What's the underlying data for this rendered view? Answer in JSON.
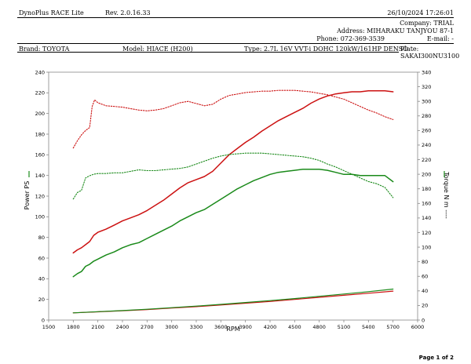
{
  "header": {
    "app_name": "DynoPlus RACE Lite",
    "revision": "Rev. 2.0.16.33",
    "datetime": "26/10/2024  17:26:01",
    "company": "Company: TRIAL",
    "address": "Address: MIHARAKU TANJYOU 87-1",
    "phone": "Phone: 072-369-3539",
    "email": "E-mail: -"
  },
  "vehicle": {
    "brand": "Brand: TOYOTA",
    "model": "Model: HIACE (H200)",
    "type": "Type: 2.7L 16V VVT-i DOHC 120kW/161HP DENSO",
    "plate_label": "Plate:",
    "plate_value": "SAKAI300NU3100"
  },
  "footer": {
    "page": "Page 1 of 2"
  },
  "chart_data": {
    "type": "line",
    "xlabel": "RPM",
    "ylabel": "Power PS",
    "y2label": "Torque N m ----",
    "xlim": [
      1500,
      6000
    ],
    "ylim": [
      0,
      240
    ],
    "y2lim": [
      0,
      340
    ],
    "x_ticks": [
      "1500",
      "1800",
      "2100",
      "2400",
      "2700",
      "3000",
      "3300",
      "3600",
      "3900",
      "4200",
      "4500",
      "4800",
      "5100",
      "5400",
      "5700",
      "6000"
    ],
    "y_ticks": [
      "0",
      "20",
      "40",
      "60",
      "80",
      "100",
      "120",
      "140",
      "160",
      "180",
      "200",
      "220",
      "240"
    ],
    "y2_ticks": [
      "0",
      "20",
      "40",
      "60",
      "80",
      "100",
      "120",
      "140",
      "160",
      "180",
      "200",
      "220",
      "240",
      "260",
      "280",
      "300",
      "320",
      "340"
    ],
    "grid": true,
    "colors": {
      "red": "#cc1111",
      "green": "#1a8a1a",
      "grid": "#d9d9d9",
      "axis": "#888888"
    },
    "series": [
      {
        "color": "red",
        "axis": "left",
        "style": "solid",
        "x": [
          1800,
          1850,
          1900,
          1950,
          2000,
          2050,
          2100,
          2200,
          2300,
          2400,
          2500,
          2600,
          2700,
          2800,
          2900,
          3000,
          3100,
          3200,
          3300,
          3400,
          3500,
          3600,
          3700,
          3800,
          3900,
          4000,
          4100,
          4200,
          4300,
          4400,
          4500,
          4600,
          4700,
          4800,
          4900,
          5000,
          5100,
          5200,
          5300,
          5400,
          5500,
          5600,
          5700
        ],
        "y": [
          65,
          68,
          70,
          73,
          76,
          82,
          85,
          88,
          92,
          96,
          99,
          102,
          106,
          111,
          116,
          122,
          128,
          133,
          136,
          139,
          144,
          152,
          160,
          166,
          172,
          177,
          183,
          188,
          193,
          197,
          201,
          205,
          210,
          214,
          217,
          219,
          220,
          221,
          221,
          222,
          222,
          222,
          221
        ]
      },
      {
        "color": "green",
        "axis": "left",
        "style": "solid",
        "x": [
          1800,
          1850,
          1900,
          1950,
          2000,
          2050,
          2100,
          2200,
          2300,
          2400,
          2500,
          2600,
          2700,
          2800,
          2900,
          3000,
          3100,
          3200,
          3300,
          3400,
          3500,
          3600,
          3700,
          3800,
          3900,
          4000,
          4100,
          4200,
          4300,
          4400,
          4500,
          4600,
          4700,
          4800,
          4900,
          5000,
          5100,
          5200,
          5300,
          5400,
          5500,
          5600,
          5700
        ],
        "y": [
          42,
          45,
          47,
          52,
          54,
          57,
          59,
          63,
          66,
          70,
          73,
          75,
          79,
          83,
          87,
          91,
          96,
          100,
          104,
          107,
          112,
          117,
          122,
          127,
          131,
          135,
          138,
          141,
          143,
          144,
          145,
          146,
          146,
          146,
          145,
          143,
          141,
          141,
          140,
          140,
          140,
          140,
          134
        ]
      },
      {
        "color": "red",
        "axis": "right",
        "style": "dotted",
        "x": [
          1800,
          1850,
          1900,
          1950,
          2000,
          2030,
          2060,
          2100,
          2200,
          2300,
          2400,
          2500,
          2600,
          2700,
          2800,
          2900,
          3000,
          3100,
          3200,
          3300,
          3400,
          3500,
          3600,
          3700,
          3800,
          3900,
          4000,
          4100,
          4200,
          4300,
          4400,
          4500,
          4600,
          4700,
          4800,
          4900,
          5000,
          5100,
          5200,
          5300,
          5400,
          5500,
          5600,
          5700
        ],
        "y": [
          236,
          246,
          254,
          260,
          264,
          293,
          302,
          298,
          294,
          293,
          292,
          290,
          288,
          287,
          288,
          290,
          294,
          298,
          300,
          297,
          294,
          296,
          303,
          308,
          310,
          312,
          313,
          314,
          314,
          315,
          315,
          315,
          314,
          313,
          311,
          309,
          306,
          303,
          298,
          293,
          288,
          284,
          279,
          275
        ]
      },
      {
        "color": "green",
        "axis": "right",
        "style": "dotted",
        "x": [
          1800,
          1850,
          1900,
          1950,
          2000,
          2050,
          2100,
          2200,
          2300,
          2400,
          2500,
          2600,
          2700,
          2800,
          2900,
          3000,
          3100,
          3200,
          3300,
          3400,
          3500,
          3600,
          3700,
          3800,
          3900,
          4000,
          4100,
          4200,
          4300,
          4400,
          4500,
          4600,
          4700,
          4800,
          4900,
          5000,
          5100,
          5200,
          5300,
          5400,
          5500,
          5600,
          5700
        ],
        "y": [
          166,
          175,
          178,
          195,
          198,
          200,
          201,
          201,
          202,
          202,
          204,
          206,
          205,
          205,
          206,
          207,
          208,
          210,
          214,
          218,
          222,
          225,
          227,
          228,
          229,
          229,
          229,
          228,
          227,
          226,
          225,
          224,
          222,
          219,
          214,
          210,
          205,
          200,
          195,
          190,
          187,
          182,
          168
        ]
      },
      {
        "color": "red",
        "axis": "left",
        "style": "solid-thin",
        "x": [
          1800,
          2100,
          2400,
          2700,
          3000,
          3300,
          3600,
          3900,
          4200,
          4500,
          4800,
          5100,
          5400,
          5700
        ],
        "y": [
          7,
          8,
          9,
          10.2,
          11.6,
          13,
          14.6,
          16.3,
          18,
          20,
          22,
          24,
          26,
          28
        ]
      },
      {
        "color": "green",
        "axis": "left",
        "style": "solid-thin",
        "x": [
          1800,
          2100,
          2400,
          2700,
          3000,
          3300,
          3600,
          3900,
          4200,
          4500,
          4800,
          5100,
          5400,
          5700
        ],
        "y": [
          7,
          8.1,
          9.2,
          10.5,
          12,
          13.5,
          15.2,
          17,
          18.8,
          20.8,
          23,
          25.2,
          27.5,
          30
        ]
      }
    ]
  }
}
